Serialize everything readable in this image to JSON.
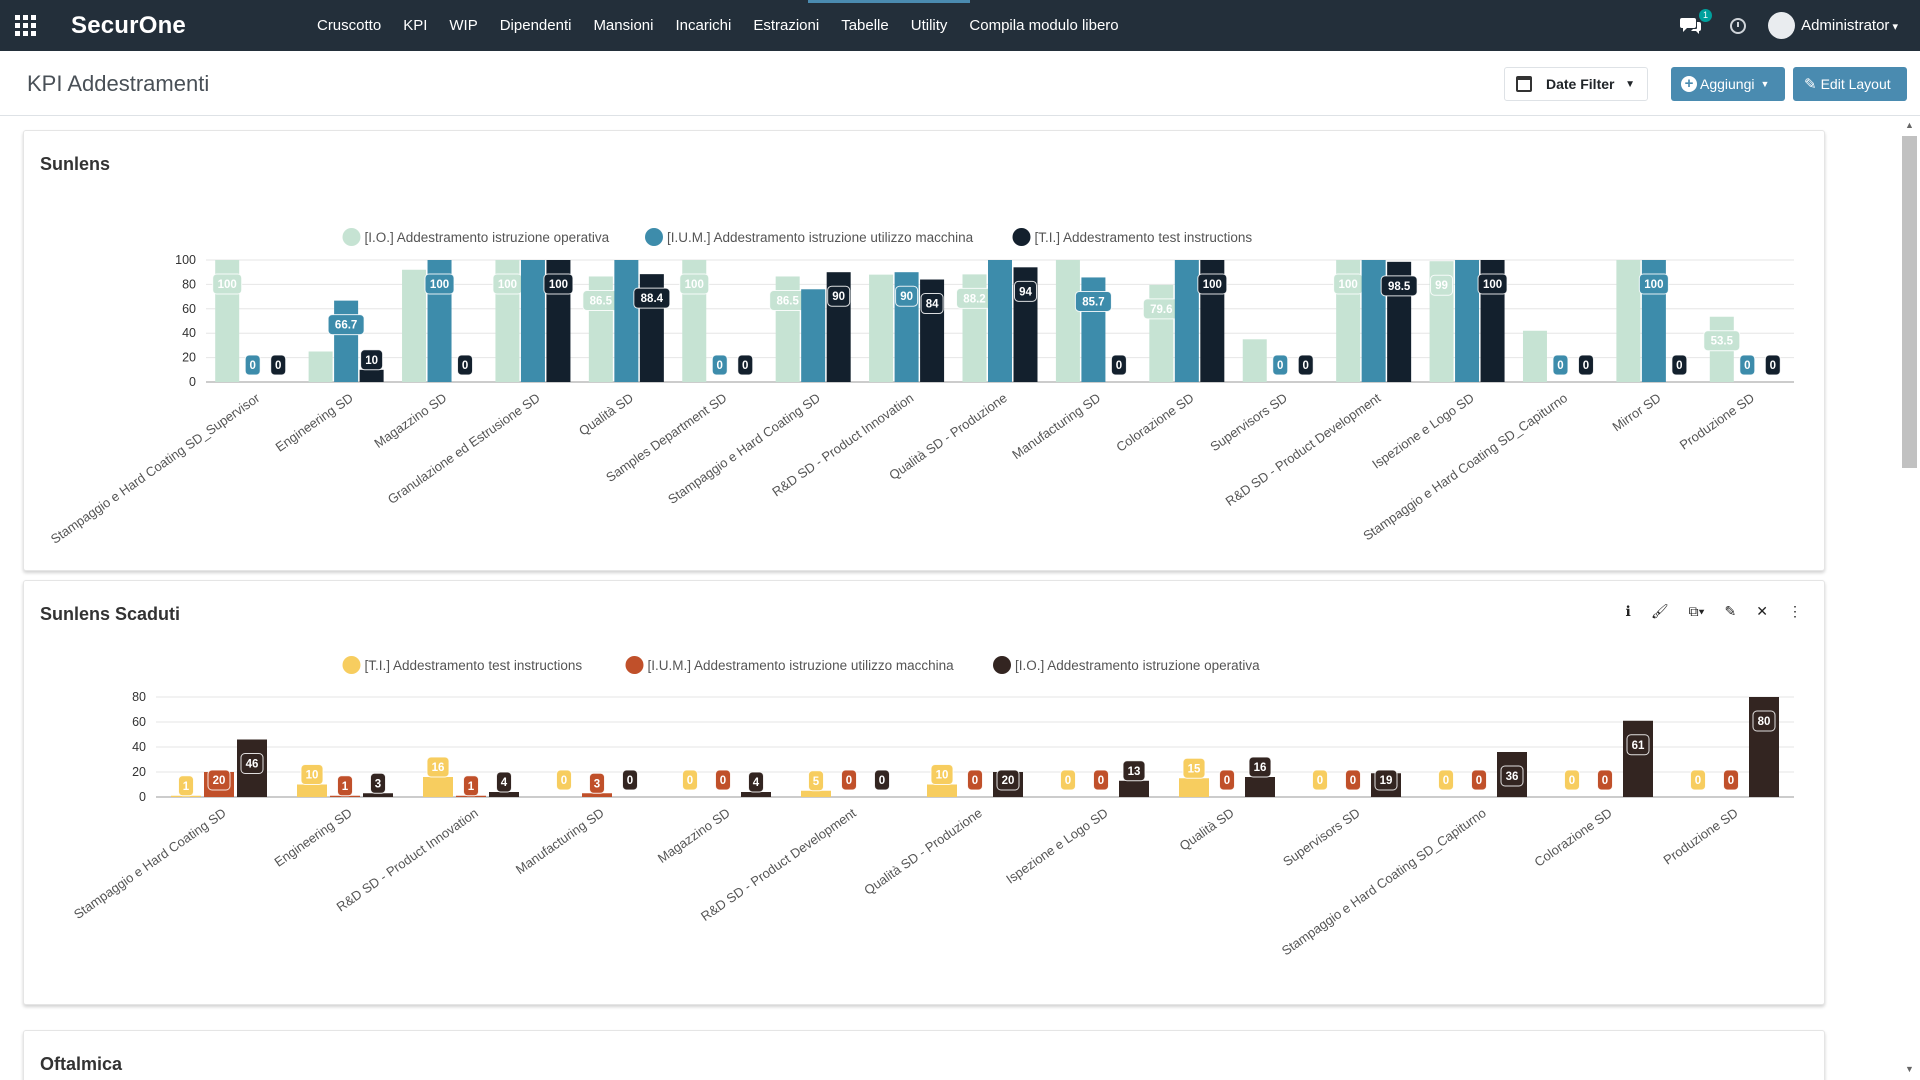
{
  "app": {
    "brand": "SecurOne",
    "user": "Administrator",
    "chat_count": "1"
  },
  "menu": [
    "Cruscotto",
    "KPI",
    "WIP",
    "Dipendenti",
    "Mansioni",
    "Incarichi",
    "Estrazioni",
    "Tabelle",
    "Utility",
    "Compila modulo libero"
  ],
  "page": {
    "title": "KPI Addestramenti",
    "date_filter": "Date Filter",
    "add_label": "Aggiungi",
    "edit_label": "Edit Layout"
  },
  "colors": {
    "io_light": "#c6e3d3",
    "ium_blue": "#3d8cab",
    "ti_dark": "#13202d",
    "ti_yellow": "#f7cd5f",
    "ium_red": "#c0502a",
    "io_dark": "#332521"
  },
  "cards": {
    "third_title": "Oftalmica"
  },
  "chart_data": [
    {
      "type": "bar",
      "title": "Sunlens",
      "ylim": [
        0,
        100
      ],
      "yticks": [
        0,
        20,
        40,
        60,
        80,
        100
      ],
      "legend_position": "top-center",
      "categories": [
        "Stampaggio e Hard Coating SD_Supervisor",
        "Engineering SD",
        "Magazzino SD",
        "Granulazione ed Estrusione SD",
        "Qualità SD",
        "Samples Department SD",
        "Stampaggio e Hard Coating SD",
        "R&D SD - Product Innovation",
        "Qualità SD - Produzione",
        "Manufacturing SD",
        "Colorazione SD",
        "Supervisors SD",
        "R&D SD - Product Development",
        "Ispezione e Logo SD",
        "Stampaggio e Hard Coating SD_Capiturno",
        "Mirror SD",
        "Produzione SD"
      ],
      "series": [
        {
          "name": "[I.O.] Addestramento istruzione operativa",
          "color": "#c6e3d3",
          "values": [
            100,
            25,
            92,
            100,
            86.5,
            100,
            86.5,
            88,
            88.2,
            100,
            79.6,
            35,
            100,
            99,
            42,
            100,
            53.5
          ],
          "labels": [
            "100",
            "",
            "",
            "100",
            "86.5",
            "100",
            "86.5",
            "",
            "88.2",
            "",
            "79.6",
            "",
            "100",
            "99",
            "",
            "",
            "53.5"
          ]
        },
        {
          "name": "[I.U.M.] Addestramento istruzione utilizzo macchina",
          "color": "#3d8cab",
          "values": [
            0,
            66.7,
            100,
            100,
            100,
            0,
            76,
            90,
            100,
            85.7,
            100,
            0,
            100,
            100,
            0,
            100,
            0
          ],
          "labels": [
            "0",
            "66.7",
            "100",
            "",
            "",
            "0",
            "",
            "90",
            "",
            "85.7",
            "",
            "0",
            "",
            "",
            "0",
            "100",
            "0"
          ]
        },
        {
          "name": "[T.I.] Addestramento test instructions",
          "color": "#13202d",
          "values": [
            0,
            10,
            0,
            100,
            88.4,
            0,
            90,
            84,
            94,
            0,
            100,
            0,
            98.5,
            100,
            0,
            0,
            0
          ],
          "labels": [
            "0",
            "10",
            "0",
            "100",
            "88.4",
            "0",
            "90",
            "84",
            "94",
            "0",
            "100",
            "0",
            "98.5",
            "100",
            "0",
            "0",
            "0"
          ]
        }
      ]
    },
    {
      "type": "bar",
      "title": "Sunlens Scaduti",
      "ylim": [
        0,
        80
      ],
      "yticks": [
        0,
        20,
        40,
        60,
        80
      ],
      "legend_position": "top-center",
      "categories": [
        "Stampaggio e Hard Coating SD",
        "Engineering SD",
        "R&D SD - Product Innovation",
        "Manufacturing SD",
        "Magazzino SD",
        "R&D SD - Product Development",
        "Qualità SD - Produzione",
        "Ispezione e Logo SD",
        "Qualità SD",
        "Supervisors SD",
        "Stampaggio e Hard Coating SD_Capiturno",
        "Colorazione SD",
        "Produzione SD"
      ],
      "series": [
        {
          "name": "[T.I.] Addestramento test instructions",
          "color": "#f7cd5f",
          "values": [
            1,
            10,
            16,
            0,
            0,
            5,
            10,
            0,
            15,
            0,
            0,
            0,
            0
          ],
          "labels": [
            "1",
            "10",
            "16",
            "0",
            "0",
            "5",
            "10",
            "0",
            "15",
            "0",
            "0",
            "0",
            "0"
          ]
        },
        {
          "name": "[I.U.M.] Addestramento istruzione utilizzo macchina",
          "color": "#c0502a",
          "values": [
            20,
            1,
            1,
            3,
            0,
            0,
            0,
            0,
            0,
            0,
            0,
            0,
            0
          ],
          "labels": [
            "20",
            "1",
            "1",
            "3",
            "0",
            "0",
            "0",
            "0",
            "0",
            "0",
            "0",
            "0",
            "0"
          ]
        },
        {
          "name": "[I.O.] Addestramento istruzione operativa",
          "color": "#332521",
          "values": [
            46,
            3,
            4,
            0,
            4,
            0,
            20,
            13,
            16,
            19,
            36,
            61,
            80
          ],
          "labels": [
            "46",
            "3",
            "4",
            "0",
            "4",
            "0",
            "20",
            "13",
            "16",
            "19",
            "36",
            "61",
            "80"
          ]
        }
      ]
    }
  ]
}
